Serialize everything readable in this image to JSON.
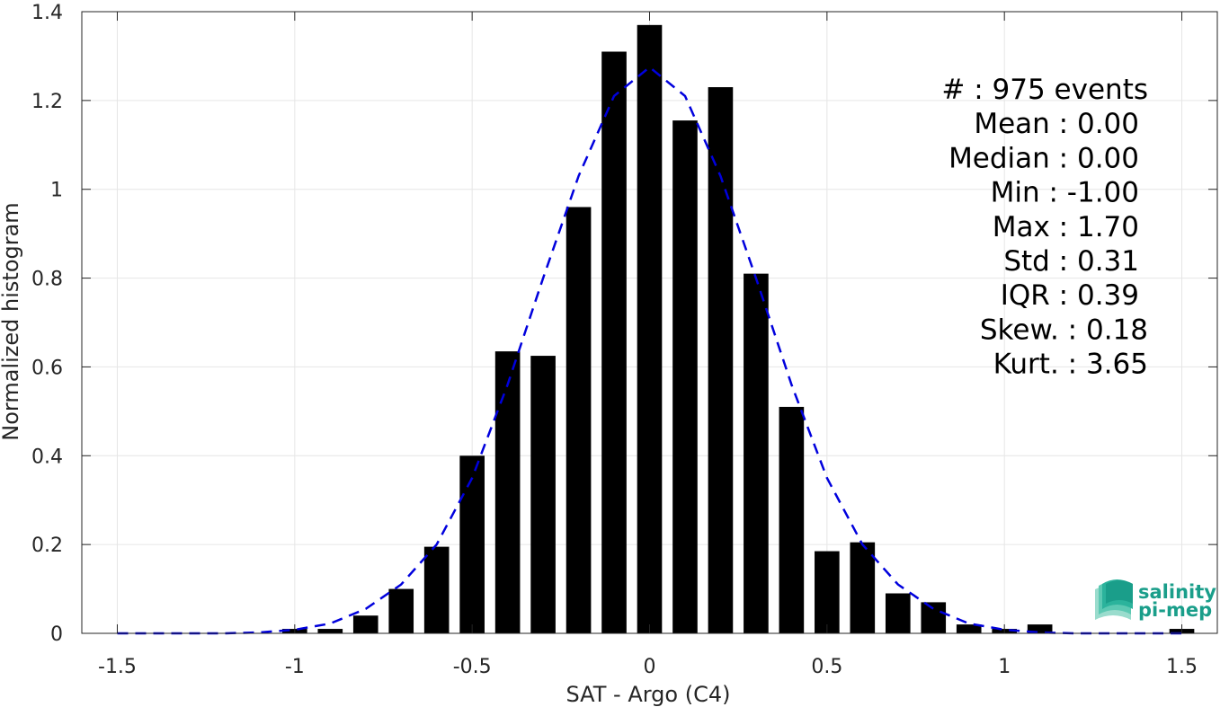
{
  "chart_data": {
    "type": "bar",
    "xlabel": "SAT - Argo (C4)",
    "ylabel": "Normalized histogram",
    "xlim": [
      -1.6,
      1.6
    ],
    "ylim": [
      0,
      1.4
    ],
    "xticks": [
      -1.5,
      -1,
      -0.5,
      0,
      0.5,
      1,
      1.5
    ],
    "xtick_labels": [
      "-1.5",
      "-1",
      "-0.5",
      "0",
      "0.5",
      "1",
      "1.5"
    ],
    "yticks": [
      0,
      0.2,
      0.4,
      0.6,
      0.8,
      1,
      1.2,
      1.4
    ],
    "ytick_labels": [
      "0",
      "0.2",
      "0.4",
      "0.6",
      "0.8",
      "1",
      "1.2",
      "1.4"
    ],
    "grid": true,
    "bar_width": 0.07,
    "bars": {
      "x": [
        -1.0,
        -0.9,
        -0.8,
        -0.7,
        -0.6,
        -0.5,
        -0.4,
        -0.3,
        -0.2,
        -0.1,
        0.0,
        0.1,
        0.2,
        0.3,
        0.4,
        0.5,
        0.6,
        0.7,
        0.8,
        0.9,
        1.0,
        1.1,
        1.5
      ],
      "values": [
        0.01,
        0.01,
        0.04,
        0.1,
        0.195,
        0.4,
        0.635,
        0.625,
        0.96,
        1.31,
        1.37,
        1.155,
        1.23,
        0.81,
        0.51,
        0.185,
        0.205,
        0.09,
        0.07,
        0.02,
        0.01,
        0.02,
        0.01
      ],
      "color": "#000000"
    },
    "fit": {
      "style": "dashed",
      "color": "#0000dd",
      "x": [
        -1.5,
        -1.4,
        -1.3,
        -1.2,
        -1.1,
        -1.0,
        -0.9,
        -0.8,
        -0.7,
        -0.6,
        -0.5,
        -0.4,
        -0.3,
        -0.2,
        -0.1,
        0.0,
        0.1,
        0.2,
        0.3,
        0.4,
        0.5,
        0.6,
        0.7,
        0.8,
        0.9,
        1.0,
        1.1,
        1.2,
        1.3,
        1.4,
        1.5
      ],
      "y": [
        0.0,
        0.0,
        0.0,
        0.0,
        0.002,
        0.008,
        0.022,
        0.055,
        0.11,
        0.2,
        0.35,
        0.56,
        0.8,
        1.03,
        1.21,
        1.275,
        1.21,
        1.03,
        0.8,
        0.56,
        0.35,
        0.2,
        0.11,
        0.055,
        0.022,
        0.008,
        0.002,
        0.0,
        0.0,
        0.0,
        0.0
      ]
    },
    "stats": [
      "#  : 975 events",
      "Mean : 0.00",
      "Median : 0.00",
      "Min : -1.00",
      "Max : 1.70",
      "Std : 0.31",
      "IQR : 0.39",
      "Skew. : 0.18",
      "Kurt. : 3.65"
    ]
  },
  "logo": {
    "line1": "salinity",
    "line2": "pi-mep",
    "colors": [
      "#1a9e8a",
      "#2bb39c",
      "#5cc9b3",
      "#9adccd"
    ]
  },
  "colors": {
    "axis": "#262626",
    "grid": "#e6e6e6"
  }
}
